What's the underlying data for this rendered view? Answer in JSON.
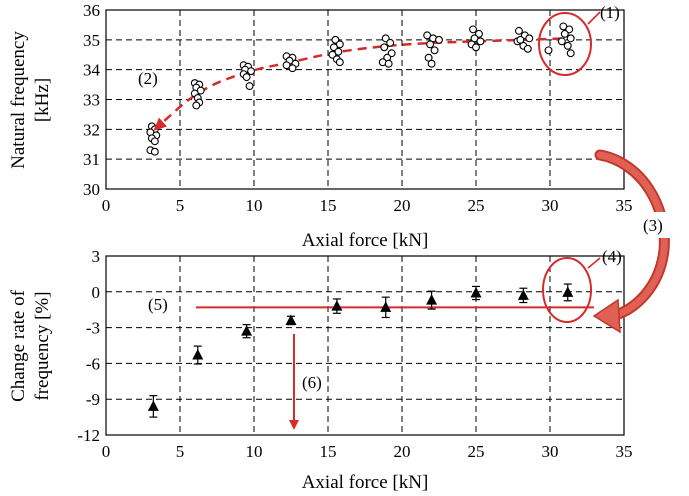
{
  "accent": "#d62b2b",
  "chart_data": [
    {
      "type": "scatter",
      "xlabel": "Axial force [kN]",
      "ylabel": [
        "Natural frequency",
        "[kHz]"
      ],
      "xlim": [
        0,
        35
      ],
      "ylim": [
        30,
        36
      ],
      "xticks": [
        0,
        5,
        10,
        15,
        20,
        25,
        30,
        35
      ],
      "yticks": [
        30,
        31,
        32,
        33,
        34,
        35,
        36
      ],
      "grid": true,
      "points": [
        [
          3.1,
          32.1
        ],
        [
          3.3,
          32.0
        ],
        [
          3.0,
          31.9
        ],
        [
          3.4,
          31.8
        ],
        [
          3.1,
          31.7
        ],
        [
          3.3,
          31.6
        ],
        [
          3.0,
          31.3
        ],
        [
          3.3,
          31.25
        ],
        [
          6.0,
          33.55
        ],
        [
          6.3,
          33.5
        ],
        [
          6.1,
          33.4
        ],
        [
          6.4,
          33.3
        ],
        [
          6.0,
          33.2
        ],
        [
          6.2,
          33.05
        ],
        [
          6.3,
          32.9
        ],
        [
          6.1,
          32.8
        ],
        [
          9.3,
          34.15
        ],
        [
          9.6,
          34.1
        ],
        [
          9.4,
          34.0
        ],
        [
          9.8,
          33.95
        ],
        [
          9.3,
          33.85
        ],
        [
          9.5,
          33.75
        ],
        [
          9.7,
          33.45
        ],
        [
          12.2,
          34.45
        ],
        [
          12.6,
          34.4
        ],
        [
          12.4,
          34.3
        ],
        [
          12.8,
          34.2
        ],
        [
          12.2,
          34.15
        ],
        [
          12.6,
          34.05
        ],
        [
          15.5,
          35.0
        ],
        [
          15.8,
          34.85
        ],
        [
          15.4,
          34.75
        ],
        [
          15.7,
          34.6
        ],
        [
          15.3,
          34.5
        ],
        [
          15.6,
          34.35
        ],
        [
          15.8,
          34.25
        ],
        [
          18.9,
          35.05
        ],
        [
          19.2,
          34.9
        ],
        [
          18.8,
          34.75
        ],
        [
          19.3,
          34.55
        ],
        [
          19.0,
          34.4
        ],
        [
          18.7,
          34.25
        ],
        [
          19.1,
          34.2
        ],
        [
          21.7,
          35.15
        ],
        [
          22.1,
          35.05
        ],
        [
          22.5,
          35.0
        ],
        [
          21.9,
          34.85
        ],
        [
          22.2,
          34.65
        ],
        [
          21.8,
          34.4
        ],
        [
          22.0,
          34.2
        ],
        [
          24.8,
          35.35
        ],
        [
          25.2,
          35.2
        ],
        [
          24.9,
          35.05
        ],
        [
          25.3,
          34.95
        ],
        [
          24.7,
          34.85
        ],
        [
          25.0,
          34.75
        ],
        [
          27.9,
          35.3
        ],
        [
          28.3,
          35.15
        ],
        [
          28.6,
          35.05
        ],
        [
          27.8,
          34.95
        ],
        [
          28.2,
          34.8
        ],
        [
          28.5,
          34.7
        ],
        [
          28.0,
          35.0
        ],
        [
          30.9,
          35.45
        ],
        [
          31.3,
          35.35
        ],
        [
          31.0,
          35.2
        ],
        [
          31.4,
          35.05
        ],
        [
          30.8,
          34.95
        ],
        [
          31.2,
          34.8
        ],
        [
          31.4,
          34.55
        ],
        [
          29.9,
          34.65
        ]
      ],
      "trend_curve": [
        [
          3.2,
          31.95
        ],
        [
          6.2,
          33.3
        ],
        [
          9.5,
          33.95
        ],
        [
          12.5,
          34.25
        ],
        [
          15.6,
          34.6
        ],
        [
          18.9,
          34.8
        ],
        [
          22.0,
          34.9
        ],
        [
          25.0,
          34.95
        ],
        [
          28.2,
          35.0
        ],
        [
          31.2,
          35.05
        ]
      ],
      "annotations": [
        {
          "id": "1",
          "text": "(1)"
        },
        {
          "id": "2",
          "text": "(2)"
        }
      ]
    },
    {
      "type": "scatter",
      "marker": "triangle",
      "error_bars": true,
      "xlabel": "Axial force [kN]",
      "ylabel": [
        "Change rate of",
        "frequency [%]"
      ],
      "xlim": [
        0,
        35
      ],
      "ylim": [
        -12,
        3
      ],
      "xticks": [
        0,
        5,
        10,
        15,
        20,
        25,
        30,
        35
      ],
      "yticks": [
        3,
        0,
        -3,
        -6,
        -9,
        -12
      ],
      "grid": true,
      "x": [
        3.2,
        6.2,
        9.5,
        12.5,
        15.6,
        18.9,
        22.0,
        25.0,
        28.2,
        31.2
      ],
      "y": [
        -9.6,
        -5.3,
        -3.3,
        -2.4,
        -1.2,
        -1.3,
        -0.7,
        -0.1,
        -0.3,
        -0.05
      ],
      "err": [
        0.9,
        0.75,
        0.55,
        0.35,
        0.6,
        0.85,
        0.75,
        0.55,
        0.6,
        0.7
      ],
      "reference_line_y": -1.3,
      "annotations": [
        {
          "id": "4",
          "text": "(4)"
        },
        {
          "id": "5",
          "text": "(5)"
        },
        {
          "id": "6",
          "text": "(6)"
        }
      ]
    }
  ],
  "shared_annotations": [
    {
      "id": "3",
      "text": "(3)"
    }
  ]
}
